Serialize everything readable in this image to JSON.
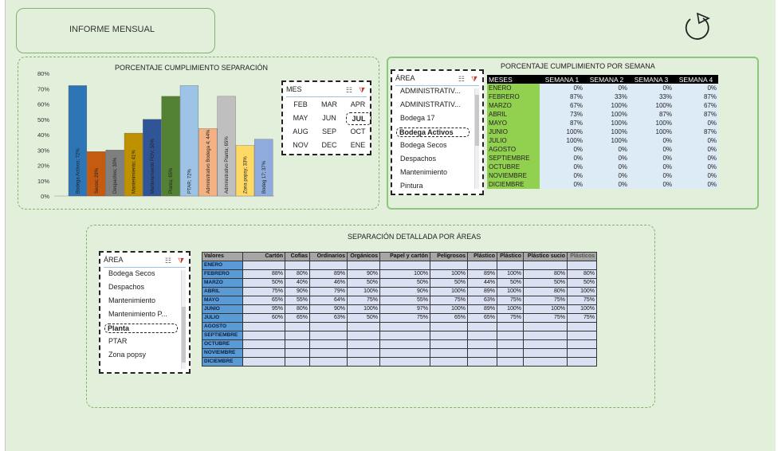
{
  "header": {
    "title": "INFORME MENSUAL"
  },
  "separation": {
    "title": "PORCENTAJE  CUMPLIMIENTO SEPARACIÓN",
    "mes_slicer": {
      "label": "MES",
      "months": [
        "FEB",
        "MAR",
        "APR",
        "MAY",
        "JUN",
        "JUL",
        "AUG",
        "SEP",
        "OCT",
        "NOV",
        "DEC",
        "ENE"
      ],
      "selected": "JUL"
    }
  },
  "chart_data": {
    "type": "bar",
    "y_ticks": [
      "0%",
      "10%",
      "20%",
      "30%",
      "40%",
      "50%",
      "60%",
      "70%",
      "80%"
    ],
    "ylim": [
      0,
      80
    ],
    "categories": [
      "Bodega Activos",
      "Secos",
      "Despachos",
      "Mantenimiento",
      "Mantenimiento POV",
      "Planta",
      "PTAR",
      "Administrativo Bodega",
      "Administrativo Planta",
      "Zona popsy",
      "Bodeg 17"
    ],
    "values": [
      72,
      29,
      30,
      41,
      50,
      65,
      72,
      44,
      65,
      33,
      37
    ],
    "labels": [
      "Bodega Activos; 72%",
      "Secos; 29%",
      "Despachos; 30%",
      "Mantenimiento; 41%",
      "Mantenimiento POV; 50%",
      "Planta; 65%",
      "PTAR; 72%",
      "Administrativo Bodega 4; 44%",
      "Administrativo Planta; 65%",
      "Zona popsy; 33%",
      "Bodeg 17; 37%"
    ],
    "colors": [
      "#2e75b6",
      "#c55a11",
      "#7f7f7f",
      "#bf9000",
      "#2f5597",
      "#548235",
      "#9dc3e6",
      "#f4b183",
      "#bfbfbf",
      "#ffd966",
      "#8faadc"
    ]
  },
  "weekly": {
    "title": "PORCENTAJE  CUMPLIMIENTO POR SEMANA",
    "area_slicer": {
      "label": "ÁREA",
      "items": [
        "ADMINISTRATIV...",
        "ADMINISTRATIV...",
        "Bodega 17",
        "Bodega Activos",
        "Bodega Secos",
        "Despachos",
        "Mantenimiento",
        "Pintura"
      ],
      "selected": "Bodega Activos"
    },
    "headers": [
      "MESES",
      "SEMANA 1",
      "SEMANA 2",
      "SEMANA 3",
      "SEMANA 4"
    ],
    "rows": [
      [
        "ENERO",
        "0%",
        "0%",
        "0%",
        "0%"
      ],
      [
        "FEBRERO",
        "87%",
        "33%",
        "33%",
        "87%"
      ],
      [
        "MARZO",
        "67%",
        "100%",
        "100%",
        "67%"
      ],
      [
        "ABRIL",
        "73%",
        "100%",
        "87%",
        "87%"
      ],
      [
        "MAYO",
        "87%",
        "100%",
        "100%",
        "0%"
      ],
      [
        "JUNIO",
        "100%",
        "100%",
        "100%",
        "87%"
      ],
      [
        "JULIO",
        "100%",
        "100%",
        "0%",
        "0%"
      ],
      [
        "AGOSTO",
        "0%",
        "0%",
        "0%",
        "0%"
      ],
      [
        "SEPTIEMBRE",
        "0%",
        "0%",
        "0%",
        "0%"
      ],
      [
        "OCTUBRE",
        "0%",
        "0%",
        "0%",
        "0%"
      ],
      [
        "NOVIEMBRE",
        "0%",
        "0%",
        "0%",
        "0%"
      ],
      [
        "DICIEMBRE",
        "0%",
        "0%",
        "0%",
        "0%"
      ]
    ]
  },
  "detail": {
    "title": "SEPARACIÓN DETALLADA POR ÁREAS",
    "area_slicer": {
      "label": "ÁREA",
      "items": [
        "Bodega Secos",
        "Despachos",
        "Mantenimiento",
        "Mantenimiento P...",
        "Planta",
        "PTAR",
        "Zona popsy"
      ],
      "selected": "Planta"
    },
    "headers": [
      "Valores",
      "Cartón",
      "Cofias",
      "Ordinarios",
      "Orgánicos",
      "Papel y cartón",
      "Peligrosos",
      "Plástico",
      "Plástico",
      "Plástico sucio",
      "Plásticos"
    ],
    "rows": [
      [
        "ENERO",
        "",
        "",
        "",
        "",
        "",
        "",
        "",
        "",
        "",
        ""
      ],
      [
        "FEBRERO",
        "88%",
        "80%",
        "89%",
        "90%",
        "100%",
        "100%",
        "89%",
        "100%",
        "80%",
        "80%"
      ],
      [
        "MARZO",
        "50%",
        "40%",
        "46%",
        "50%",
        "50%",
        "50%",
        "44%",
        "50%",
        "50%",
        "50%"
      ],
      [
        "ABRIL",
        "75%",
        "90%",
        "79%",
        "100%",
        "90%",
        "100%",
        "89%",
        "100%",
        "80%",
        "100%"
      ],
      [
        "MAYO",
        "65%",
        "55%",
        "64%",
        "75%",
        "55%",
        "75%",
        "63%",
        "75%",
        "75%",
        "75%"
      ],
      [
        "JUNIO",
        "95%",
        "80%",
        "90%",
        "100%",
        "97%",
        "100%",
        "89%",
        "100%",
        "100%",
        "100%"
      ],
      [
        "JULIO",
        "60%",
        "65%",
        "63%",
        "50%",
        "75%",
        "65%",
        "65%",
        "75%",
        "75%",
        "75%"
      ],
      [
        "AGOSTO",
        "",
        "",
        "",
        "",
        "",
        "",
        "",
        "",
        "",
        ""
      ],
      [
        "SEPTIEMBRE",
        "",
        "",
        "",
        "",
        "",
        "",
        "",
        "",
        "",
        ""
      ],
      [
        "OCTUBRE",
        "",
        "",
        "",
        "",
        "",
        "",
        "",
        "",
        "",
        ""
      ],
      [
        "NOVIEMBRE",
        "",
        "",
        "",
        "",
        "",
        "",
        "",
        "",
        "",
        ""
      ],
      [
        "DICIEMBRE",
        "",
        "",
        "",
        "",
        "",
        "",
        "",
        "",
        "",
        ""
      ]
    ]
  }
}
